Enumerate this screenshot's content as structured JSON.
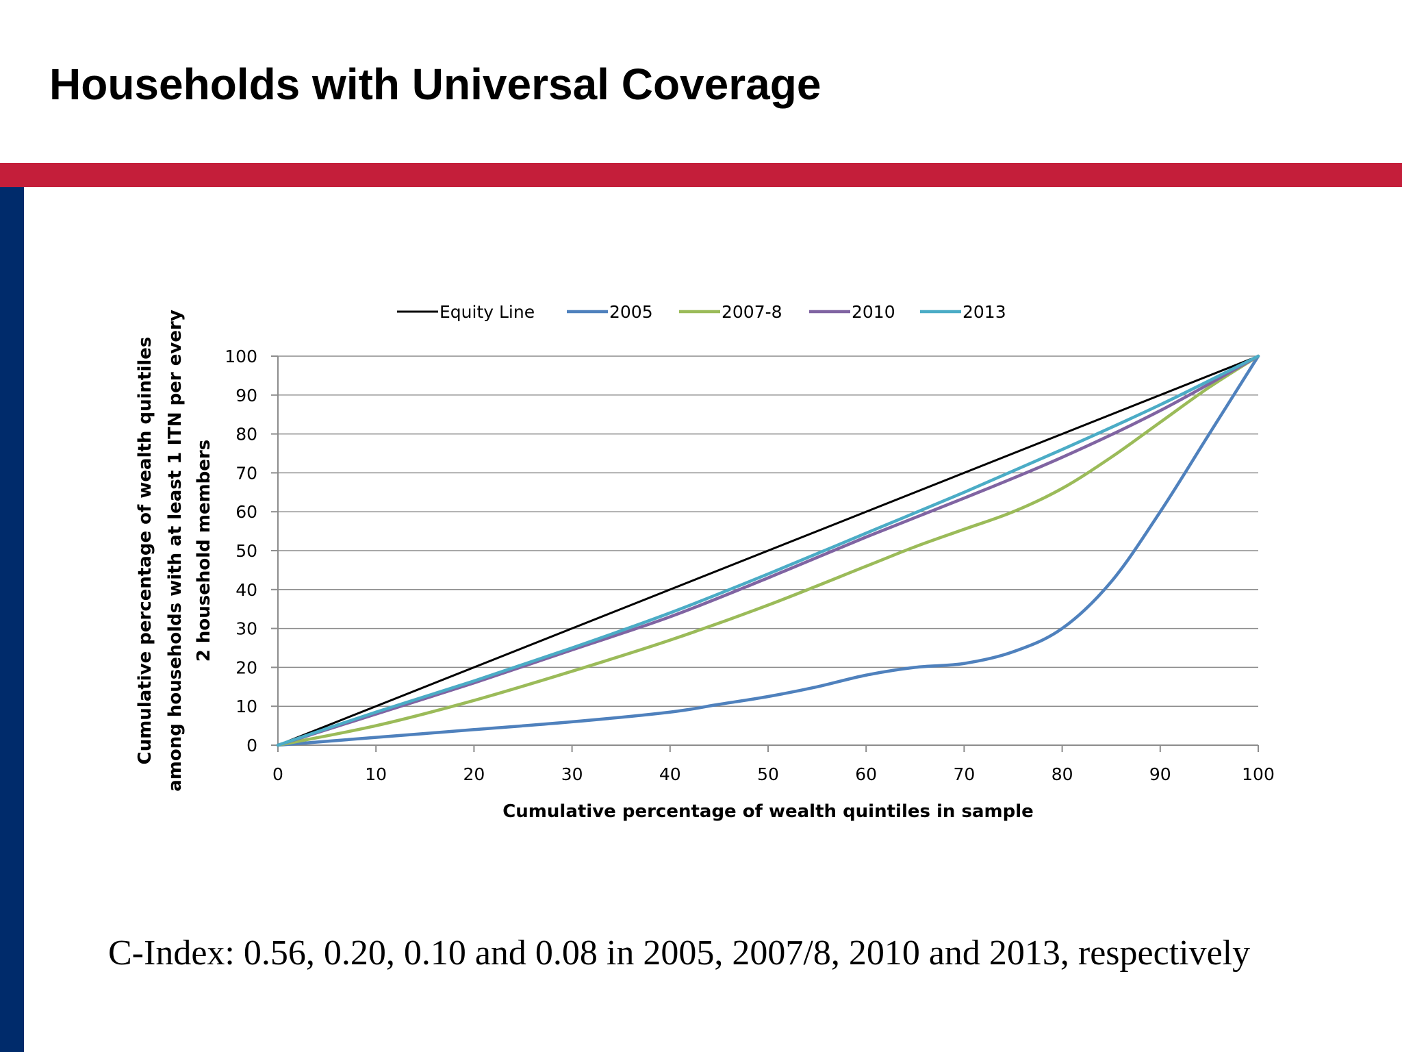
{
  "slide": {
    "title": "Households with Universal Coverage",
    "caption": "C-Index: 0.56, 0.20, 0.10 and 0.08 in 2005, 2007/8, 2010 and 2013, respectively",
    "accent_red": "#C41E3A",
    "accent_blue": "#002B6B"
  },
  "chart_data": {
    "type": "line",
    "xlabel": "Cumulative percentage of wealth quintiles in sample",
    "ylabel_lines": [
      "Cumulative percentage of wealth quintiles",
      "among households with at least 1 ITN per every",
      "2 household members"
    ],
    "xlim": [
      0,
      100
    ],
    "ylim": [
      0,
      100
    ],
    "xticks": [
      0,
      10,
      20,
      30,
      40,
      50,
      60,
      70,
      80,
      90,
      100
    ],
    "yticks": [
      0,
      10,
      20,
      30,
      40,
      50,
      60,
      70,
      80,
      90,
      100
    ],
    "grid": "horizontal",
    "legend_position": "top",
    "series": [
      {
        "name": "Equity Line",
        "color": "#000000",
        "x": [
          0,
          100
        ],
        "y": [
          0,
          100
        ]
      },
      {
        "name": "2005",
        "color": "#4F81BD",
        "x": [
          0,
          10,
          20,
          30,
          40,
          45,
          50,
          55,
          60,
          65,
          70,
          75,
          80,
          85,
          90,
          95,
          100
        ],
        "y": [
          0,
          2,
          4,
          6,
          8.5,
          10.5,
          12.5,
          15,
          18,
          20,
          21,
          24,
          30,
          42,
          60,
          80,
          100
        ]
      },
      {
        "name": "2007-8",
        "color": "#9BBB59",
        "x": [
          0,
          10,
          20,
          30,
          40,
          50,
          60,
          65,
          70,
          75,
          80,
          85,
          90,
          95,
          100
        ],
        "y": [
          0,
          5,
          11.5,
          19,
          27,
          36,
          46,
          51,
          55.5,
          60,
          66,
          74,
          83,
          92,
          100
        ]
      },
      {
        "name": "2010",
        "color": "#8064A2",
        "x": [
          0,
          10,
          20,
          30,
          40,
          50,
          60,
          70,
          80,
          90,
          100
        ],
        "y": [
          0,
          8,
          16,
          24.5,
          33,
          43,
          53.5,
          63.5,
          74,
          86,
          100
        ]
      },
      {
        "name": "2013",
        "color": "#4BACC6",
        "x": [
          0,
          10,
          20,
          30,
          40,
          50,
          60,
          70,
          80,
          90,
          100
        ],
        "y": [
          0,
          8.5,
          16.5,
          25,
          34,
          44,
          54.5,
          65,
          76,
          87.5,
          100
        ]
      }
    ]
  }
}
